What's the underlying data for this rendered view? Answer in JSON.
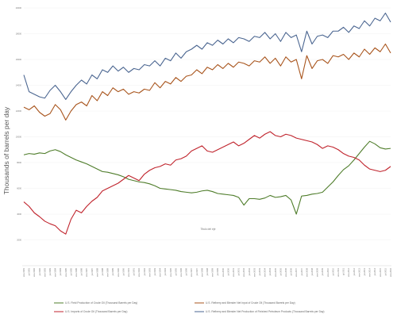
{
  "chart_data": {
    "type": "line",
    "title": "",
    "xlabel": "Titulo del eje",
    "ylabel": "Thousands of barrels per day",
    "x_ticks": [
      "ene-1981",
      "jul-1981",
      "ene-1982",
      "jul-1982",
      "ene-1983",
      "jul-1983",
      "ene-1984",
      "jul-1984",
      "ene-1985",
      "jul-1985",
      "ene-1986",
      "jul-1986",
      "ene-1987",
      "jul-1987",
      "ene-1988",
      "jul-1988",
      "ene-1989",
      "jul-1989",
      "ene-1990",
      "jul-1990",
      "ene-1991",
      "jul-1991",
      "ene-1992",
      "jul-1992",
      "ene-1993",
      "jul-1993",
      "ene-1994",
      "jul-1994",
      "ene-1995",
      "jul-1995",
      "ene-1996",
      "jul-1996",
      "ene-1997",
      "jul-1997",
      "ene-1998",
      "jul-1998",
      "ene-1999",
      "jul-1999",
      "ene-2000",
      "jul-2000",
      "ene-2001",
      "jul-2001",
      "ene-2002",
      "jul-2002",
      "ene-2003",
      "jul-2003",
      "ene-2004",
      "jul-2004",
      "ene-2005",
      "jul-2005",
      "ene-2006",
      "jul-2006",
      "ene-2007",
      "jul-2007",
      "ene-2008",
      "jul-2008",
      "ene-2009",
      "jul-2009",
      "ene-2010",
      "jul-2010",
      "ene-2011",
      "jul-2011",
      "ene-2012",
      "jul-2012",
      "ene-2013",
      "jul-2013",
      "ene-2014",
      "jul-2014",
      "ene-2015",
      "jul-2015",
      "ene-2016"
    ],
    "y_ticks": [
      2000,
      4000,
      6000,
      8000,
      10000,
      12000,
      14000,
      16000,
      18000,
      20000
    ],
    "ylim": [
      0,
      20000
    ],
    "grid": true,
    "legend_position": "bottom",
    "series": [
      {
        "name": "U.S. Field Production of Crude Oil (Thousand Barrels per Day)",
        "color": "#4f7d2b",
        "values": [
          8600,
          8700,
          8650,
          8750,
          8700,
          8900,
          9000,
          8850,
          8600,
          8400,
          8200,
          8050,
          7900,
          7700,
          7500,
          7300,
          7250,
          7150,
          7050,
          6900,
          6700,
          6600,
          6500,
          6450,
          6350,
          6200,
          6000,
          5950,
          5900,
          5850,
          5750,
          5700,
          5650,
          5700,
          5800,
          5850,
          5750,
          5600,
          5550,
          5500,
          5450,
          5300,
          4700,
          5200,
          5200,
          5150,
          5250,
          5450,
          5300,
          5350,
          5450,
          5100,
          4000,
          5400,
          5450,
          5550,
          5600,
          5700,
          6100,
          6500,
          7000,
          7450,
          7750,
          8200,
          8700,
          9200,
          9650,
          9450,
          9150,
          9050,
          9100
        ]
      },
      {
        "name": "U.S. Refinery and Blender Net Input of Crude Oil (Thousand Barrels per Day)",
        "color": "#a8541c",
        "values": [
          12300,
          12100,
          12400,
          11900,
          11600,
          11800,
          12500,
          12100,
          11300,
          12000,
          12500,
          12700,
          12400,
          13200,
          12800,
          13500,
          13200,
          13800,
          13500,
          13700,
          13300,
          13500,
          13400,
          13700,
          13600,
          14200,
          13800,
          14300,
          14100,
          14600,
          14300,
          14700,
          14800,
          15200,
          14900,
          15400,
          15200,
          15600,
          15300,
          15700,
          15400,
          15800,
          15700,
          15500,
          15900,
          15800,
          16200,
          15700,
          16100,
          15500,
          16200,
          15800,
          16000,
          14500,
          16300,
          15300,
          15900,
          16000,
          15700,
          16300,
          16200,
          16400,
          16000,
          16500,
          16200,
          16800,
          16400,
          16900,
          16600,
          17200,
          16500
        ]
      },
      {
        "name": "U.S. Imports of Crude Oil (Thousand Barrels per Day)",
        "color": "#c0232c",
        "values": [
          4950,
          4600,
          4100,
          3800,
          3450,
          3250,
          3100,
          2700,
          2450,
          3600,
          4300,
          4100,
          4600,
          5000,
          5300,
          5800,
          6000,
          6200,
          6400,
          6700,
          7000,
          6800,
          6600,
          7100,
          7400,
          7600,
          7700,
          7900,
          7800,
          8200,
          8300,
          8500,
          8900,
          9100,
          9300,
          8900,
          8800,
          9000,
          9200,
          9400,
          9600,
          9300,
          9500,
          9800,
          10100,
          9900,
          10200,
          10400,
          10100,
          10000,
          10200,
          10100,
          9900,
          9800,
          9700,
          9600,
          9400,
          9100,
          9300,
          9200,
          9000,
          8700,
          8500,
          8400,
          8200,
          7800,
          7500,
          7400,
          7300,
          7400,
          7700
        ]
      },
      {
        "name": "U.S. Refinery and Blender Net Production of Finished Petroleum Products (Thousand Barrels per Day)",
        "color": "#4a6590",
        "values": [
          14800,
          13500,
          13300,
          13100,
          13000,
          13600,
          14000,
          13500,
          12900,
          13500,
          14000,
          14400,
          14100,
          14800,
          14500,
          15200,
          15000,
          15500,
          15100,
          15400,
          15000,
          15300,
          15200,
          15600,
          15500,
          15900,
          15500,
          16100,
          15900,
          16500,
          16100,
          16600,
          16800,
          17100,
          16800,
          17300,
          17100,
          17500,
          17200,
          17600,
          17300,
          17700,
          17600,
          17400,
          17800,
          17700,
          18100,
          17600,
          18000,
          17400,
          18100,
          17700,
          17900,
          16600,
          18200,
          17200,
          17800,
          17900,
          17700,
          18200,
          18200,
          18500,
          18100,
          18600,
          18400,
          19000,
          18600,
          19200,
          19000,
          19600,
          18900
        ]
      }
    ]
  }
}
